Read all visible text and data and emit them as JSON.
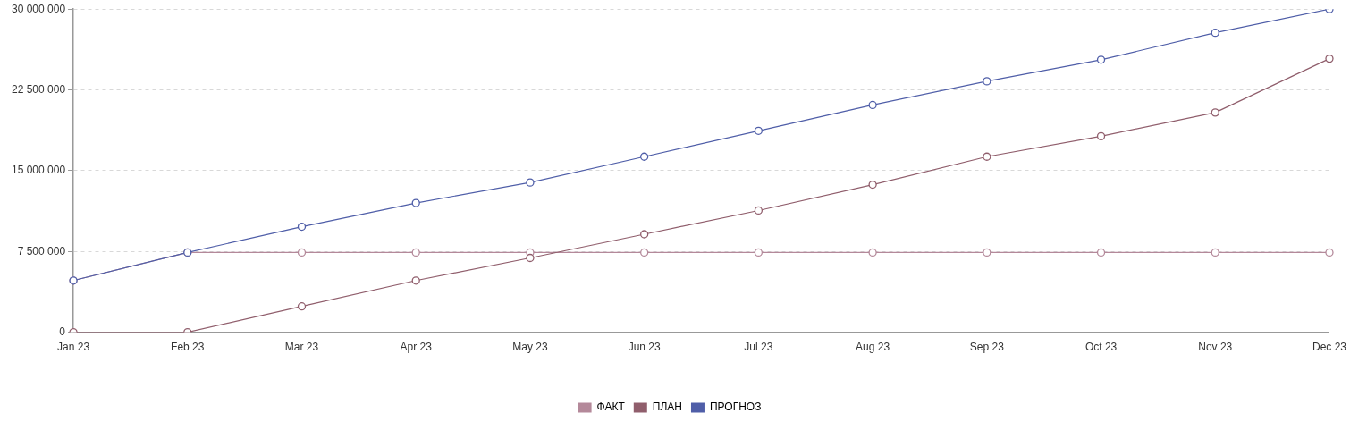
{
  "chart_data": {
    "type": "line",
    "categories": [
      "Jan 23",
      "Feb 23",
      "Mar 23",
      "Apr 23",
      "May 23",
      "Jun 23",
      "Jul 23",
      "Aug 23",
      "Sep 23",
      "Oct 23",
      "Nov 23",
      "Dec 23"
    ],
    "series": [
      {
        "name": "ФАКТ",
        "color": "#b4899a",
        "values": [
          4800000,
          7400000,
          7400000,
          7400000,
          7400000,
          7400000,
          7400000,
          7400000,
          7400000,
          7400000,
          7400000,
          7400000
        ]
      },
      {
        "name": "ПЛАН",
        "color": "#905e6c",
        "values": [
          0,
          0,
          2400000,
          4800000,
          6900000,
          9100000,
          11300000,
          13700000,
          16300000,
          18200000,
          20400000,
          25400000
        ]
      },
      {
        "name": "ПРОГНОЗ",
        "color": "#4f5ea8",
        "values": [
          4800000,
          7400000,
          9800000,
          12000000,
          13900000,
          16300000,
          18700000,
          21100000,
          23300000,
          25300000,
          27800000,
          30000000
        ]
      }
    ],
    "ylim": [
      0,
      30000000
    ],
    "yticks": [
      {
        "value": 0,
        "label": "0"
      },
      {
        "value": 7500000,
        "label": "7 500 000"
      },
      {
        "value": 15000000,
        "label": "15 000 000"
      },
      {
        "value": 22500000,
        "label": "22 500 000"
      },
      {
        "value": 30000000,
        "label": "30 000 000"
      }
    ],
    "grid": "y",
    "legend": "bottom",
    "marker": "circle",
    "line_style": "solid"
  }
}
